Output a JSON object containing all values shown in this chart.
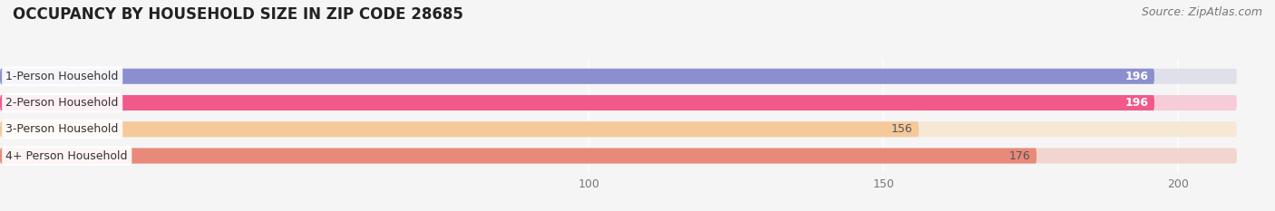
{
  "title": "OCCUPANCY BY HOUSEHOLD SIZE IN ZIP CODE 28685",
  "source": "Source: ZipAtlas.com",
  "categories": [
    "1-Person Household",
    "2-Person Household",
    "3-Person Household",
    "4+ Person Household"
  ],
  "values": [
    196,
    196,
    156,
    176
  ],
  "bar_colors": [
    "#8b8fcf",
    "#f0598a",
    "#f5c99a",
    "#e8897a"
  ],
  "bg_colors": [
    "#e0e0eb",
    "#f5ccd8",
    "#f7e8d5",
    "#f2d5ce"
  ],
  "xmin": 0,
  "xmax": 210,
  "xticks": [
    100,
    150,
    200
  ],
  "bar_height": 0.58,
  "bar_gap": 0.42,
  "background_color": "#f5f5f5",
  "title_fontsize": 12,
  "source_fontsize": 9,
  "label_fontsize": 9,
  "value_fontsize": 9
}
